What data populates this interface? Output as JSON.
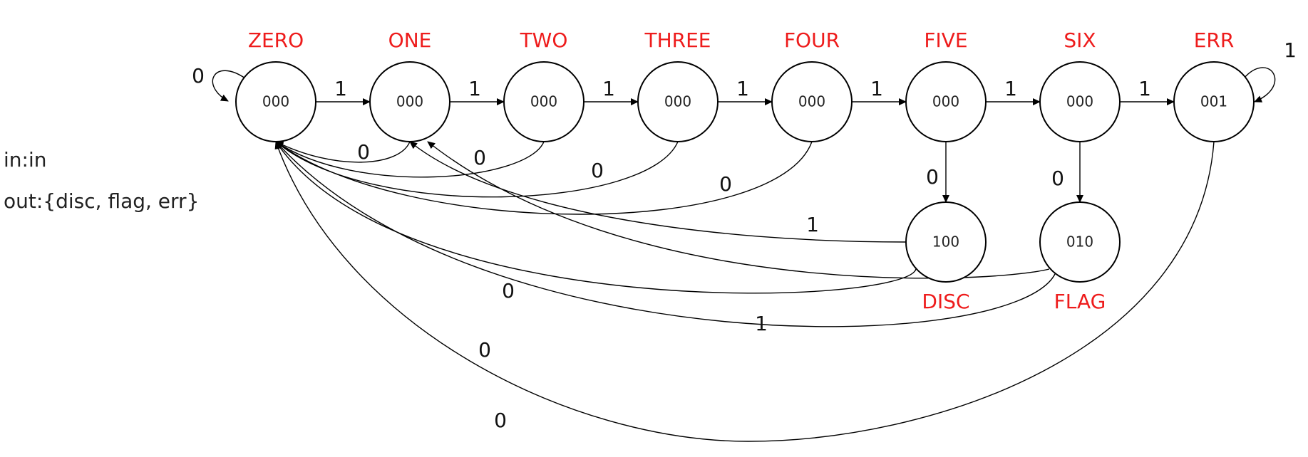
{
  "legend": {
    "input": "in:in",
    "output": "out:{disc, flag, err}"
  },
  "states": [
    {
      "id": "zero",
      "name": "ZERO",
      "output": "000"
    },
    {
      "id": "one",
      "name": "ONE",
      "output": "000"
    },
    {
      "id": "two",
      "name": "TWO",
      "output": "000"
    },
    {
      "id": "three",
      "name": "THREE",
      "output": "000"
    },
    {
      "id": "four",
      "name": "FOUR",
      "output": "000"
    },
    {
      "id": "five",
      "name": "FIVE",
      "output": "000"
    },
    {
      "id": "six",
      "name": "SIX",
      "output": "000"
    },
    {
      "id": "err",
      "name": "ERR",
      "output": "001"
    },
    {
      "id": "disc",
      "name": "DISC",
      "output": "100"
    },
    {
      "id": "flag",
      "name": "FLAG",
      "output": "010"
    }
  ],
  "transitions": [
    {
      "from": "zero",
      "to": "zero",
      "input": "0"
    },
    {
      "from": "zero",
      "to": "one",
      "input": "1"
    },
    {
      "from": "one",
      "to": "two",
      "input": "1"
    },
    {
      "from": "two",
      "to": "three",
      "input": "1"
    },
    {
      "from": "three",
      "to": "four",
      "input": "1"
    },
    {
      "from": "four",
      "to": "five",
      "input": "1"
    },
    {
      "from": "five",
      "to": "six",
      "input": "1"
    },
    {
      "from": "six",
      "to": "err",
      "input": "1"
    },
    {
      "from": "err",
      "to": "err",
      "input": "1"
    },
    {
      "from": "five",
      "to": "disc",
      "input": "0"
    },
    {
      "from": "six",
      "to": "flag",
      "input": "0"
    },
    {
      "from": "one",
      "to": "zero",
      "input": "0"
    },
    {
      "from": "two",
      "to": "zero",
      "input": "0"
    },
    {
      "from": "three",
      "to": "zero",
      "input": "0"
    },
    {
      "from": "four",
      "to": "zero",
      "input": "0"
    },
    {
      "from": "disc",
      "to": "one",
      "input": "1"
    },
    {
      "from": "disc",
      "to": "zero",
      "input": "0"
    },
    {
      "from": "flag",
      "to": "one",
      "input": "1"
    },
    {
      "from": "flag",
      "to": "zero",
      "input": "0"
    },
    {
      "from": "err",
      "to": "zero",
      "input": "0"
    }
  ]
}
